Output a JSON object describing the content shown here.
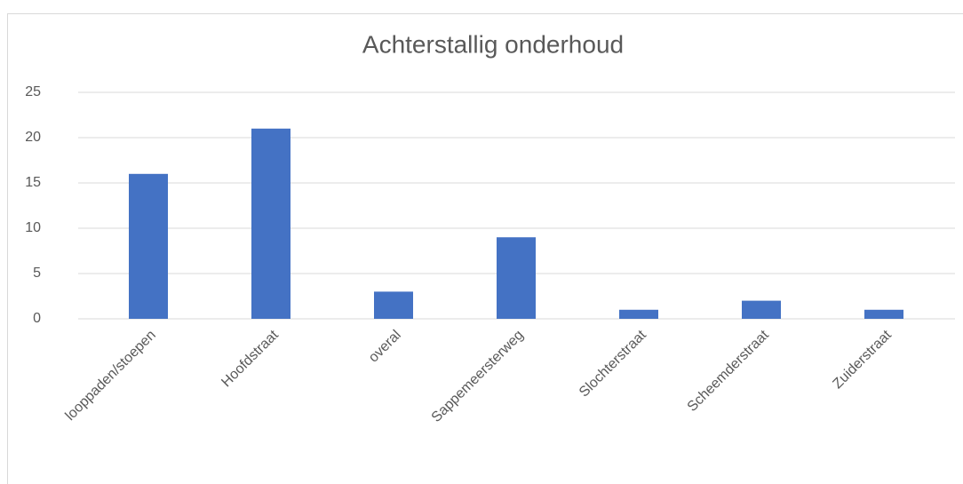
{
  "chart_data": {
    "type": "bar",
    "title": "Achterstallig onderhoud",
    "categories": [
      "looppaden/stoepen",
      "Hoofdstraat",
      "overal",
      "Sappemeersterweg",
      "Slochterstraat",
      "Scheemderstraat",
      "Zuiderstraat"
    ],
    "values": [
      16,
      21,
      3,
      9,
      1,
      2,
      1
    ],
    "color": "#4472c4",
    "ylim": [
      0,
      25
    ],
    "yticks": [
      0,
      5,
      10,
      15,
      20,
      25
    ],
    "grid": true
  }
}
